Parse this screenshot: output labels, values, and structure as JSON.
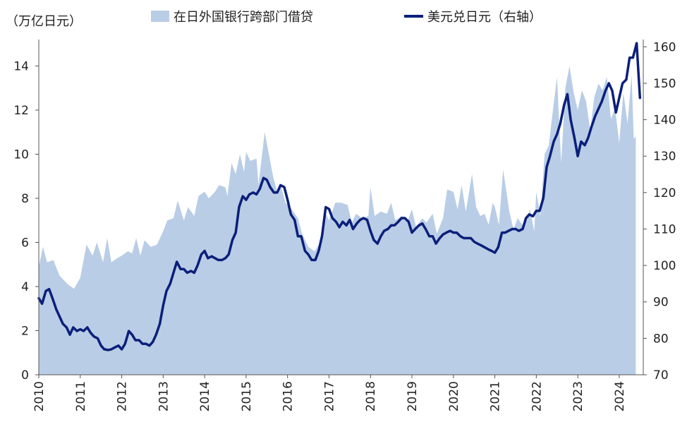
{
  "colors": {
    "area": "#b9cde6",
    "line": "#0b1f7a",
    "axis": "#555555"
  },
  "chart_data": {
    "type": "area",
    "left_unit_label": "（万亿日元）",
    "legend": {
      "area_label": "在日外国银行跨部门借贷",
      "line_label": "美元兑日元（右轴）",
      "placement": "top"
    },
    "x_ticks": [
      "2010",
      "2011",
      "2012",
      "2013",
      "2014",
      "2015",
      "2016",
      "2017",
      "2018",
      "2019",
      "2020",
      "2021",
      "2022",
      "2023",
      "2024"
    ],
    "x_range": [
      2010.0,
      2024.58
    ],
    "y_left": {
      "ticks": [
        0,
        2,
        4,
        6,
        8,
        10,
        12,
        14
      ],
      "range": [
        0,
        15.2
      ]
    },
    "y_right": {
      "ticks": [
        70,
        80,
        90,
        100,
        110,
        120,
        130,
        140,
        150,
        160
      ],
      "range": [
        70,
        162
      ]
    },
    "series": [
      {
        "name": "在日外国银行跨部门借贷",
        "axis": "left",
        "kind": "area",
        "points": [
          [
            2010.0,
            4.9
          ],
          [
            2010.1,
            5.8
          ],
          [
            2010.2,
            5.1
          ],
          [
            2010.35,
            5.2
          ],
          [
            2010.5,
            4.5
          ],
          [
            2010.7,
            4.1
          ],
          [
            2010.85,
            3.9
          ],
          [
            2011.0,
            4.4
          ],
          [
            2011.15,
            5.9
          ],
          [
            2011.3,
            5.4
          ],
          [
            2011.4,
            6.0
          ],
          [
            2011.55,
            5.1
          ],
          [
            2011.65,
            6.2
          ],
          [
            2011.75,
            5.1
          ],
          [
            2011.9,
            5.3
          ],
          [
            2012.0,
            5.4
          ],
          [
            2012.15,
            5.6
          ],
          [
            2012.25,
            5.5
          ],
          [
            2012.35,
            6.2
          ],
          [
            2012.45,
            5.4
          ],
          [
            2012.55,
            6.1
          ],
          [
            2012.7,
            5.8
          ],
          [
            2012.85,
            5.9
          ],
          [
            2013.0,
            6.5
          ],
          [
            2013.1,
            7.0
          ],
          [
            2013.25,
            7.1
          ],
          [
            2013.35,
            7.9
          ],
          [
            2013.5,
            7.0
          ],
          [
            2013.6,
            7.6
          ],
          [
            2013.75,
            7.2
          ],
          [
            2013.85,
            8.1
          ],
          [
            2014.0,
            8.3
          ],
          [
            2014.1,
            8.0
          ],
          [
            2014.25,
            8.3
          ],
          [
            2014.35,
            8.6
          ],
          [
            2014.5,
            8.5
          ],
          [
            2014.55,
            8.1
          ],
          [
            2014.65,
            9.6
          ],
          [
            2014.75,
            9.1
          ],
          [
            2014.85,
            10.0
          ],
          [
            2014.95,
            9.2
          ],
          [
            2015.0,
            10.1
          ],
          [
            2015.1,
            9.7
          ],
          [
            2015.25,
            9.8
          ],
          [
            2015.3,
            8.6
          ],
          [
            2015.45,
            11.0
          ],
          [
            2015.55,
            10.0
          ],
          [
            2015.65,
            9.0
          ],
          [
            2015.75,
            8.3
          ],
          [
            2015.85,
            8.5
          ],
          [
            2015.95,
            7.8
          ],
          [
            2016.1,
            7.5
          ],
          [
            2016.25,
            7.1
          ],
          [
            2016.35,
            6.4
          ],
          [
            2016.5,
            5.8
          ],
          [
            2016.65,
            5.6
          ],
          [
            2016.8,
            6.0
          ],
          [
            2016.9,
            7.4
          ],
          [
            2017.0,
            7.0
          ],
          [
            2017.15,
            7.8
          ],
          [
            2017.3,
            7.8
          ],
          [
            2017.45,
            7.7
          ],
          [
            2017.55,
            6.9
          ],
          [
            2017.65,
            7.3
          ],
          [
            2017.8,
            7.1
          ],
          [
            2017.95,
            7.2
          ],
          [
            2018.0,
            8.5
          ],
          [
            2018.1,
            7.2
          ],
          [
            2018.25,
            7.4
          ],
          [
            2018.4,
            7.3
          ],
          [
            2018.5,
            7.8
          ],
          [
            2018.6,
            7.0
          ],
          [
            2018.75,
            7.2
          ],
          [
            2018.9,
            7.0
          ],
          [
            2019.0,
            7.5
          ],
          [
            2019.1,
            6.7
          ],
          [
            2019.25,
            7.1
          ],
          [
            2019.35,
            6.9
          ],
          [
            2019.5,
            7.3
          ],
          [
            2019.6,
            6.4
          ],
          [
            2019.75,
            7.1
          ],
          [
            2019.85,
            8.4
          ],
          [
            2020.0,
            8.3
          ],
          [
            2020.1,
            7.5
          ],
          [
            2020.2,
            8.6
          ],
          [
            2020.3,
            7.4
          ],
          [
            2020.45,
            9.1
          ],
          [
            2020.55,
            7.6
          ],
          [
            2020.65,
            7.2
          ],
          [
            2020.75,
            7.3
          ],
          [
            2020.85,
            6.8
          ],
          [
            2020.95,
            7.8
          ],
          [
            2021.0,
            7.6
          ],
          [
            2021.1,
            6.8
          ],
          [
            2021.2,
            9.3
          ],
          [
            2021.35,
            7.4
          ],
          [
            2021.45,
            6.6
          ],
          [
            2021.55,
            7.1
          ],
          [
            2021.7,
            6.7
          ],
          [
            2021.85,
            7.5
          ],
          [
            2021.95,
            6.5
          ],
          [
            2022.0,
            8.3
          ],
          [
            2022.1,
            7.2
          ],
          [
            2022.2,
            10.0
          ],
          [
            2022.3,
            10.4
          ],
          [
            2022.4,
            12.0
          ],
          [
            2022.5,
            13.5
          ],
          [
            2022.6,
            9.6
          ],
          [
            2022.7,
            13.0
          ],
          [
            2022.8,
            14.0
          ],
          [
            2022.9,
            12.8
          ],
          [
            2023.0,
            12.0
          ],
          [
            2023.1,
            12.9
          ],
          [
            2023.2,
            12.4
          ],
          [
            2023.3,
            11.1
          ],
          [
            2023.4,
            12.6
          ],
          [
            2023.5,
            13.2
          ],
          [
            2023.6,
            12.9
          ],
          [
            2023.7,
            13.5
          ],
          [
            2023.8,
            11.6
          ],
          [
            2023.9,
            12.1
          ],
          [
            2024.0,
            10.5
          ],
          [
            2024.1,
            12.8
          ],
          [
            2024.2,
            11.4
          ],
          [
            2024.3,
            13.6
          ],
          [
            2024.35,
            10.7
          ],
          [
            2024.4,
            10.8
          ]
        ]
      },
      {
        "name": "美元兑日元（右轴）",
        "axis": "right",
        "kind": "line",
        "points": [
          [
            2010.0,
            91
          ],
          [
            2010.08,
            89.5
          ],
          [
            2010.17,
            93
          ],
          [
            2010.25,
            93.5
          ],
          [
            2010.33,
            91
          ],
          [
            2010.42,
            88
          ],
          [
            2010.5,
            86
          ],
          [
            2010.58,
            84
          ],
          [
            2010.67,
            83
          ],
          [
            2010.75,
            81
          ],
          [
            2010.83,
            83
          ],
          [
            2010.92,
            82
          ],
          [
            2011.0,
            82.5
          ],
          [
            2011.08,
            82
          ],
          [
            2011.17,
            83
          ],
          [
            2011.25,
            81.5
          ],
          [
            2011.33,
            80.5
          ],
          [
            2011.42,
            80
          ],
          [
            2011.5,
            78
          ],
          [
            2011.58,
            77
          ],
          [
            2011.67,
            76.8
          ],
          [
            2011.75,
            77
          ],
          [
            2011.83,
            77.5
          ],
          [
            2011.92,
            78
          ],
          [
            2012.0,
            77
          ],
          [
            2012.08,
            78.5
          ],
          [
            2012.17,
            82
          ],
          [
            2012.25,
            81
          ],
          [
            2012.33,
            79.5
          ],
          [
            2012.42,
            79.5
          ],
          [
            2012.5,
            78.5
          ],
          [
            2012.58,
            78.5
          ],
          [
            2012.67,
            78
          ],
          [
            2012.75,
            79
          ],
          [
            2012.83,
            81
          ],
          [
            2012.92,
            84
          ],
          [
            2013.0,
            89
          ],
          [
            2013.08,
            93
          ],
          [
            2013.17,
            95
          ],
          [
            2013.25,
            98
          ],
          [
            2013.33,
            101
          ],
          [
            2013.42,
            99
          ],
          [
            2013.5,
            99
          ],
          [
            2013.58,
            98
          ],
          [
            2013.67,
            98.5
          ],
          [
            2013.75,
            98
          ],
          [
            2013.83,
            100
          ],
          [
            2013.92,
            103
          ],
          [
            2014.0,
            104
          ],
          [
            2014.08,
            102
          ],
          [
            2014.17,
            102.5
          ],
          [
            2014.25,
            102
          ],
          [
            2014.33,
            101.5
          ],
          [
            2014.42,
            101.5
          ],
          [
            2014.5,
            102
          ],
          [
            2014.58,
            103
          ],
          [
            2014.67,
            107
          ],
          [
            2014.75,
            109
          ],
          [
            2014.83,
            116
          ],
          [
            2014.92,
            119
          ],
          [
            2015.0,
            118
          ],
          [
            2015.08,
            119.5
          ],
          [
            2015.17,
            120
          ],
          [
            2015.25,
            119.5
          ],
          [
            2015.33,
            121
          ],
          [
            2015.42,
            124
          ],
          [
            2015.5,
            123.5
          ],
          [
            2015.58,
            121.5
          ],
          [
            2015.67,
            120
          ],
          [
            2015.75,
            120
          ],
          [
            2015.83,
            122
          ],
          [
            2015.92,
            121.5
          ],
          [
            2016.0,
            118
          ],
          [
            2016.08,
            114
          ],
          [
            2016.17,
            112.5
          ],
          [
            2016.25,
            108
          ],
          [
            2016.33,
            108
          ],
          [
            2016.42,
            104
          ],
          [
            2016.5,
            103
          ],
          [
            2016.58,
            101.5
          ],
          [
            2016.67,
            101.5
          ],
          [
            2016.75,
            104
          ],
          [
            2016.83,
            108
          ],
          [
            2016.92,
            116
          ],
          [
            2017.0,
            115.5
          ],
          [
            2017.08,
            113
          ],
          [
            2017.17,
            112
          ],
          [
            2017.25,
            110.5
          ],
          [
            2017.33,
            112
          ],
          [
            2017.42,
            111
          ],
          [
            2017.5,
            112.5
          ],
          [
            2017.58,
            110
          ],
          [
            2017.67,
            111.5
          ],
          [
            2017.75,
            112.5
          ],
          [
            2017.83,
            113
          ],
          [
            2017.92,
            112.5
          ],
          [
            2018.0,
            109.5
          ],
          [
            2018.08,
            107
          ],
          [
            2018.17,
            106
          ],
          [
            2018.25,
            108
          ],
          [
            2018.33,
            109.5
          ],
          [
            2018.42,
            110
          ],
          [
            2018.5,
            111
          ],
          [
            2018.58,
            111
          ],
          [
            2018.67,
            112
          ],
          [
            2018.75,
            113
          ],
          [
            2018.83,
            113
          ],
          [
            2018.92,
            112
          ],
          [
            2019.0,
            109
          ],
          [
            2019.08,
            110
          ],
          [
            2019.17,
            111
          ],
          [
            2019.25,
            111.5
          ],
          [
            2019.33,
            110
          ],
          [
            2019.42,
            108
          ],
          [
            2019.5,
            108
          ],
          [
            2019.58,
            106
          ],
          [
            2019.67,
            107.5
          ],
          [
            2019.75,
            108.5
          ],
          [
            2019.83,
            109
          ],
          [
            2019.92,
            109.5
          ],
          [
            2020.0,
            109
          ],
          [
            2020.08,
            109
          ],
          [
            2020.17,
            108
          ],
          [
            2020.25,
            107.5
          ],
          [
            2020.33,
            107.5
          ],
          [
            2020.42,
            107.5
          ],
          [
            2020.5,
            106.5
          ],
          [
            2020.58,
            106
          ],
          [
            2020.67,
            105.5
          ],
          [
            2020.75,
            105
          ],
          [
            2020.83,
            104.5
          ],
          [
            2020.92,
            104
          ],
          [
            2021.0,
            103.5
          ],
          [
            2021.08,
            105
          ],
          [
            2021.17,
            109
          ],
          [
            2021.25,
            109
          ],
          [
            2021.33,
            109.5
          ],
          [
            2021.42,
            110
          ],
          [
            2021.5,
            110
          ],
          [
            2021.58,
            109.5
          ],
          [
            2021.67,
            110
          ],
          [
            2021.75,
            113
          ],
          [
            2021.83,
            114
          ],
          [
            2021.92,
            113.5
          ],
          [
            2022.0,
            115
          ],
          [
            2022.08,
            115
          ],
          [
            2022.17,
            118.5
          ],
          [
            2022.25,
            127
          ],
          [
            2022.33,
            130
          ],
          [
            2022.42,
            134
          ],
          [
            2022.5,
            136
          ],
          [
            2022.58,
            139
          ],
          [
            2022.67,
            144
          ],
          [
            2022.75,
            147
          ],
          [
            2022.83,
            140
          ],
          [
            2022.92,
            135
          ],
          [
            2023.0,
            130
          ],
          [
            2023.08,
            134
          ],
          [
            2023.17,
            133
          ],
          [
            2023.25,
            135
          ],
          [
            2023.33,
            138
          ],
          [
            2023.42,
            141
          ],
          [
            2023.5,
            143
          ],
          [
            2023.58,
            145
          ],
          [
            2023.67,
            148
          ],
          [
            2023.75,
            150
          ],
          [
            2023.83,
            148
          ],
          [
            2023.92,
            142
          ],
          [
            2024.0,
            146
          ],
          [
            2024.08,
            150
          ],
          [
            2024.17,
            151
          ],
          [
            2024.25,
            157
          ],
          [
            2024.33,
            157
          ],
          [
            2024.42,
            161
          ],
          [
            2024.5,
            146
          ]
        ]
      }
    ]
  }
}
